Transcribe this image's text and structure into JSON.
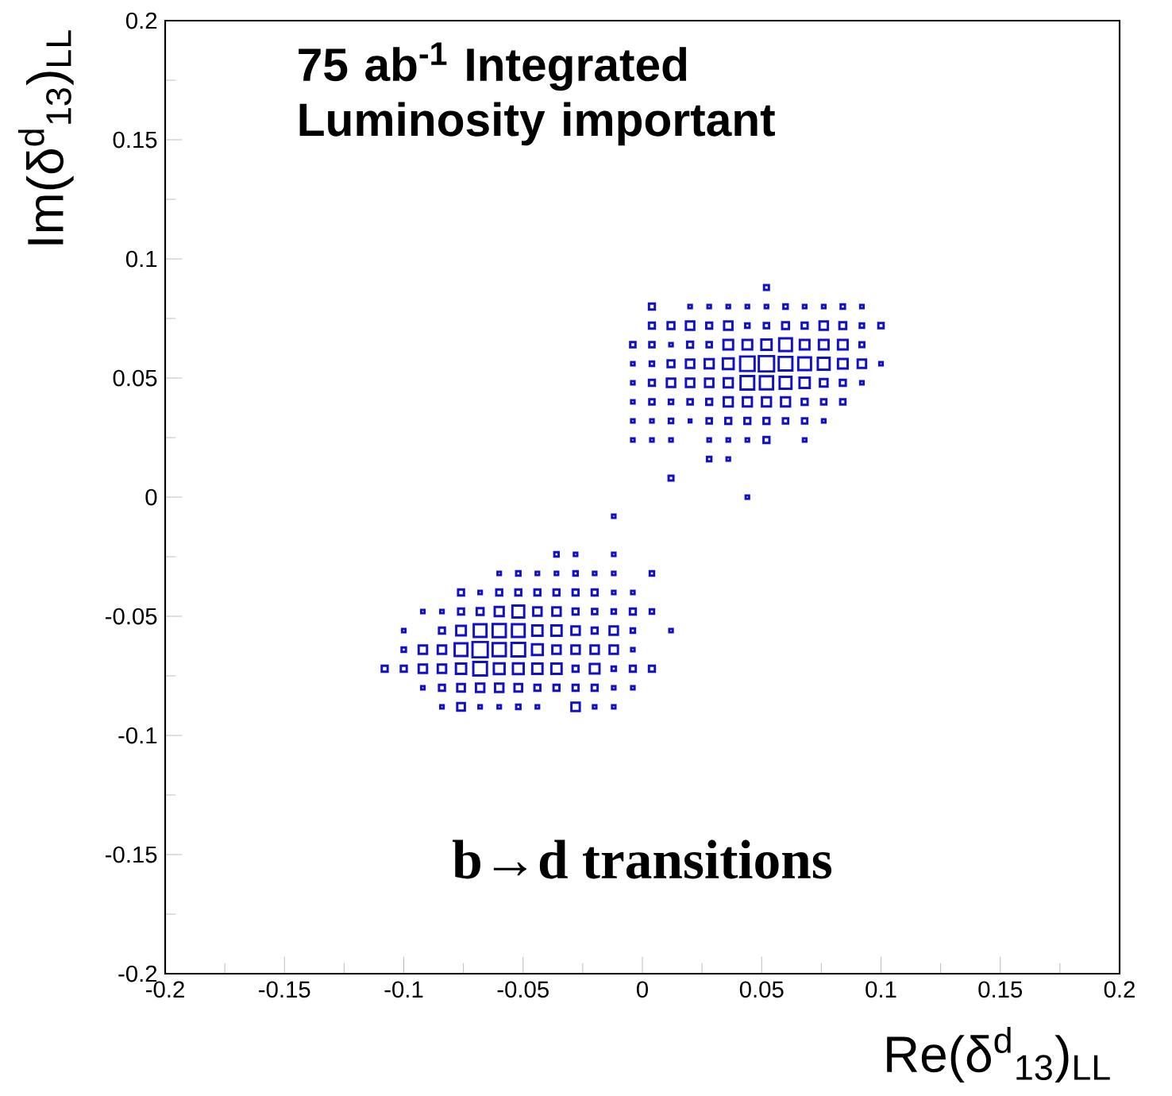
{
  "chart_data": {
    "type": "bubble",
    "marker": "square",
    "color": "#1010c8",
    "xlabel": "Re(δ$^{d}$$_{13}$)$_{LL}$",
    "ylabel": "Im(δ$^{d}$$_{13}$)$_{LL}$",
    "annotations": [
      "75 ab$^{-1}$  Integrated Luminosity important",
      "b→d transitions"
    ],
    "xlim": [
      -0.2,
      0.2
    ],
    "ylim": [
      -0.2,
      0.2
    ],
    "xticks": [
      -0.2,
      -0.15,
      -0.1,
      -0.05,
      0,
      0.05,
      0.1,
      0.15,
      0.2
    ],
    "yticks": [
      -0.2,
      -0.15,
      -0.1,
      -0.05,
      0,
      0.05,
      0.1,
      0.15,
      0.2
    ],
    "x": [
      0.052,
      0.004,
      0.02,
      0.028,
      0.036,
      0.044,
      0.052,
      0.06,
      0.068,
      0.076,
      0.084,
      0.092,
      0.004,
      0.012,
      0.02,
      0.028,
      0.036,
      0.044,
      0.052,
      0.06,
      0.068,
      0.076,
      0.084,
      0.092,
      0.1,
      -0.004,
      0.004,
      0.012,
      0.02,
      0.028,
      0.036,
      0.044,
      0.052,
      0.06,
      0.068,
      0.076,
      0.084,
      0.092,
      -0.004,
      0.004,
      0.012,
      0.02,
      0.028,
      0.036,
      0.044,
      0.052,
      0.06,
      0.068,
      0.076,
      0.084,
      0.092,
      0.1,
      -0.004,
      0.004,
      0.012,
      0.02,
      0.028,
      0.036,
      0.044,
      0.052,
      0.06,
      0.068,
      0.076,
      0.084,
      0.092,
      -0.004,
      0.004,
      0.012,
      0.02,
      0.028,
      0.036,
      0.044,
      0.052,
      0.06,
      0.068,
      0.076,
      0.084,
      -0.004,
      0.004,
      0.012,
      0.02,
      0.028,
      0.036,
      0.044,
      0.052,
      0.06,
      0.068,
      0.076,
      -0.004,
      0.004,
      0.012,
      0.028,
      0.036,
      0.044,
      0.052,
      0.068,
      0.028,
      0.036,
      0.012,
      0.044,
      -0.012,
      -0.036,
      -0.028,
      -0.012,
      -0.06,
      -0.052,
      -0.044,
      -0.036,
      -0.028,
      -0.02,
      -0.012,
      0.004,
      -0.076,
      -0.068,
      -0.06,
      -0.052,
      -0.044,
      -0.036,
      -0.028,
      -0.02,
      -0.012,
      -0.004,
      -0.092,
      -0.084,
      -0.076,
      -0.068,
      -0.06,
      -0.052,
      -0.044,
      -0.036,
      -0.028,
      -0.02,
      -0.012,
      -0.004,
      0.004,
      -0.1,
      -0.084,
      -0.076,
      -0.068,
      -0.06,
      -0.052,
      -0.044,
      -0.036,
      -0.028,
      -0.02,
      -0.012,
      -0.004,
      0.012,
      -0.1,
      -0.092,
      -0.084,
      -0.076,
      -0.068,
      -0.06,
      -0.052,
      -0.044,
      -0.036,
      -0.028,
      -0.02,
      -0.012,
      -0.004,
      -0.108,
      -0.1,
      -0.092,
      -0.084,
      -0.076,
      -0.068,
      -0.06,
      -0.052,
      -0.044,
      -0.036,
      -0.028,
      -0.02,
      -0.012,
      -0.004,
      0.004,
      -0.092,
      -0.084,
      -0.076,
      -0.068,
      -0.06,
      -0.052,
      -0.044,
      -0.036,
      -0.028,
      -0.02,
      -0.012,
      -0.004,
      -0.084,
      -0.076,
      -0.068,
      -0.06,
      -0.052,
      -0.044,
      -0.028,
      -0.02,
      -0.012
    ],
    "values": [
      0.088,
      0.08,
      0.08,
      0.08,
      0.08,
      0.08,
      0.08,
      0.08,
      0.08,
      0.08,
      0.08,
      0.08,
      0.072,
      0.072,
      0.072,
      0.072,
      0.072,
      0.072,
      0.072,
      0.072,
      0.072,
      0.072,
      0.072,
      0.072,
      0.072,
      0.064,
      0.064,
      0.064,
      0.064,
      0.064,
      0.064,
      0.064,
      0.064,
      0.064,
      0.064,
      0.064,
      0.064,
      0.064,
      0.056,
      0.056,
      0.056,
      0.056,
      0.056,
      0.056,
      0.056,
      0.056,
      0.056,
      0.056,
      0.056,
      0.056,
      0.056,
      0.056,
      0.048,
      0.048,
      0.048,
      0.048,
      0.048,
      0.048,
      0.048,
      0.048,
      0.048,
      0.048,
      0.048,
      0.048,
      0.048,
      0.04,
      0.04,
      0.04,
      0.04,
      0.04,
      0.04,
      0.04,
      0.04,
      0.04,
      0.04,
      0.04,
      0.04,
      0.032,
      0.032,
      0.032,
      0.032,
      0.032,
      0.032,
      0.032,
      0.032,
      0.032,
      0.032,
      0.032,
      0.024,
      0.024,
      0.024,
      0.024,
      0.024,
      0.024,
      0.024,
      0.024,
      0.016,
      0.016,
      0.008,
      0.0,
      -0.008,
      -0.024,
      -0.024,
      -0.024,
      -0.032,
      -0.032,
      -0.032,
      -0.032,
      -0.032,
      -0.032,
      -0.032,
      -0.032,
      -0.04,
      -0.04,
      -0.04,
      -0.04,
      -0.04,
      -0.04,
      -0.04,
      -0.04,
      -0.04,
      -0.04,
      -0.048,
      -0.048,
      -0.048,
      -0.048,
      -0.048,
      -0.048,
      -0.048,
      -0.048,
      -0.048,
      -0.048,
      -0.048,
      -0.048,
      -0.048,
      -0.056,
      -0.056,
      -0.056,
      -0.056,
      -0.056,
      -0.056,
      -0.056,
      -0.056,
      -0.056,
      -0.056,
      -0.056,
      -0.056,
      -0.056,
      -0.064,
      -0.064,
      -0.064,
      -0.064,
      -0.064,
      -0.064,
      -0.064,
      -0.064,
      -0.064,
      -0.064,
      -0.064,
      -0.064,
      -0.064,
      -0.072,
      -0.072,
      -0.072,
      -0.072,
      -0.072,
      -0.072,
      -0.072,
      -0.072,
      -0.072,
      -0.072,
      -0.072,
      -0.072,
      -0.072,
      -0.072,
      -0.072,
      -0.08,
      -0.08,
      -0.08,
      -0.08,
      -0.08,
      -0.08,
      -0.08,
      -0.08,
      -0.08,
      -0.08,
      -0.08,
      -0.08,
      -0.088,
      -0.088,
      -0.088,
      -0.088,
      -0.088,
      -0.088,
      -0.088,
      -0.088,
      -0.088
    ],
    "sizes": [
      0.1,
      0.15,
      0.05,
      0.05,
      0.05,
      0.05,
      0.05,
      0.08,
      0.05,
      0.05,
      0.08,
      0.05,
      0.15,
      0.2,
      0.3,
      0.15,
      0.3,
      0.08,
      0.12,
      0.2,
      0.15,
      0.3,
      0.2,
      0.08,
      0.12,
      0.12,
      0.12,
      0.05,
      0.15,
      0.12,
      0.4,
      0.4,
      0.45,
      0.7,
      0.4,
      0.4,
      0.4,
      0.1,
      0.05,
      0.08,
      0.2,
      0.3,
      0.35,
      0.5,
      0.9,
      1,
      0.8,
      0.7,
      0.6,
      0.4,
      0.3,
      0.05,
      0.05,
      0.15,
      0.3,
      0.3,
      0.3,
      0.35,
      0.8,
      0.75,
      0.6,
      0.45,
      0.25,
      0.15,
      0.05,
      0.05,
      0.12,
      0.08,
      0.12,
      0.15,
      0.35,
      0.35,
      0.35,
      0.35,
      0.15,
      0.12,
      0.12,
      0.05,
      0.05,
      0.08,
      0.03,
      0.12,
      0.15,
      0.15,
      0.15,
      0.12,
      0.12,
      0.05,
      0.05,
      0.05,
      0.05,
      0.05,
      0.05,
      0.05,
      0.15,
      0.05,
      0.08,
      0.05,
      0.1,
      0.05,
      0.05,
      0.08,
      0.05,
      0.05,
      0.05,
      0.08,
      0.05,
      0.05,
      0.08,
      0.05,
      0.05,
      0.08,
      0.15,
      0.05,
      0.15,
      0.15,
      0.15,
      0.15,
      0.15,
      0.15,
      0.05,
      0.05,
      0.05,
      0.05,
      0.15,
      0.2,
      0.35,
      0.6,
      0.3,
      0.3,
      0.15,
      0.12,
      0.08,
      0.15,
      0.08,
      0.05,
      0.15,
      0.4,
      0.7,
      0.75,
      0.7,
      0.45,
      0.45,
      0.3,
      0.15,
      0.3,
      0.08,
      0.05,
      0.08,
      0.3,
      0.3,
      0.7,
      1,
      0.75,
      0.8,
      0.5,
      0.3,
      0.3,
      0.3,
      0.3,
      0.05,
      0.15,
      0.15,
      0.3,
      0.3,
      0.45,
      0.8,
      0.5,
      0.5,
      0.45,
      0.45,
      0.15,
      0.4,
      0.08,
      0.15,
      0.15,
      0.05,
      0.15,
      0.25,
      0.3,
      0.3,
      0.25,
      0.15,
      0.15,
      0.15,
      0.15,
      0.05,
      0.05,
      0.05,
      0.25,
      0.05,
      0.05,
      0.08,
      0.05,
      0.3,
      0.05,
      0.05
    ]
  }
}
